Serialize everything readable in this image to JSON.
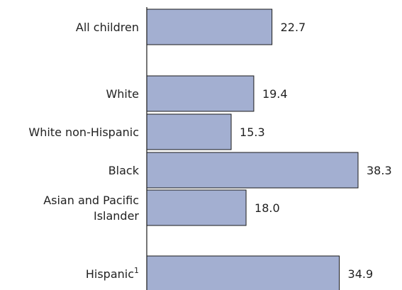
{
  "chart_data": {
    "type": "bar",
    "orientation": "horizontal",
    "categories": [
      "All children",
      "White",
      "White non-Hispanic",
      "Black",
      "Asian and Pacific Islander",
      "Hispanic"
    ],
    "category_display": [
      {
        "lines": [
          "All children"
        ],
        "sup": ""
      },
      {
        "lines": [
          "White"
        ],
        "sup": ""
      },
      {
        "lines": [
          "White non-Hispanic"
        ],
        "sup": ""
      },
      {
        "lines": [
          "Black"
        ],
        "sup": ""
      },
      {
        "lines": [
          "Asian and Pacific",
          "Islander"
        ],
        "sup": ""
      },
      {
        "lines": [
          "Hispanic"
        ],
        "sup": "1"
      }
    ],
    "values": [
      22.7,
      19.4,
      15.3,
      38.3,
      18.0,
      34.9
    ],
    "value_labels": [
      "22.7",
      "19.4",
      "15.3",
      "38.3",
      "18.0",
      "34.9"
    ],
    "groups": [
      [
        0
      ],
      [
        1,
        2,
        3,
        4
      ],
      [
        5
      ]
    ],
    "xlim": [
      0,
      38.3
    ],
    "grid": false,
    "legend": "none",
    "colors": {
      "bar_fill": "#a3afd1",
      "bar_stroke": "#1a1a1a",
      "text": "#222222"
    }
  }
}
